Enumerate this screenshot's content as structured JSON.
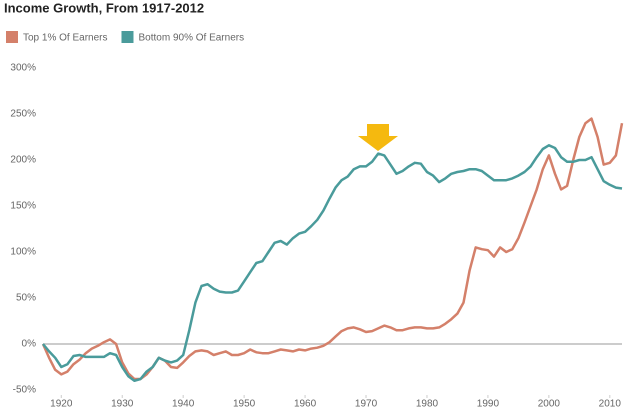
{
  "chart_data": {
    "type": "line",
    "title": "Income Growth, From 1917-2012",
    "x": [
      1917,
      1918,
      1919,
      1920,
      1921,
      1922,
      1923,
      1924,
      1925,
      1926,
      1927,
      1928,
      1929,
      1930,
      1931,
      1932,
      1933,
      1934,
      1935,
      1936,
      1937,
      1938,
      1939,
      1940,
      1941,
      1942,
      1943,
      1944,
      1945,
      1946,
      1947,
      1948,
      1949,
      1950,
      1951,
      1952,
      1953,
      1954,
      1955,
      1956,
      1957,
      1958,
      1959,
      1960,
      1961,
      1962,
      1963,
      1964,
      1965,
      1966,
      1967,
      1968,
      1969,
      1970,
      1971,
      1972,
      1973,
      1974,
      1975,
      1976,
      1977,
      1978,
      1979,
      1980,
      1981,
      1982,
      1983,
      1984,
      1985,
      1986,
      1987,
      1988,
      1989,
      1990,
      1991,
      1992,
      1993,
      1994,
      1995,
      1996,
      1997,
      1998,
      1999,
      2000,
      2001,
      2002,
      2003,
      2004,
      2005,
      2006,
      2007,
      2008,
      2009,
      2010,
      2011,
      2012
    ],
    "series": [
      {
        "name": "Top 1% Of Earners",
        "color": "#d4806a",
        "values": [
          0,
          -15,
          -28,
          -33,
          -30,
          -22,
          -17,
          -10,
          -5,
          -2,
          2,
          5,
          0,
          -20,
          -32,
          -38,
          -38,
          -33,
          -25,
          -15,
          -18,
          -25,
          -26,
          -20,
          -13,
          -8,
          -7,
          -8,
          -12,
          -10,
          -8,
          -12,
          -12,
          -10,
          -6,
          -9,
          -10,
          -10,
          -8,
          -6,
          -7,
          -8,
          -6,
          -7,
          -5,
          -4,
          -2,
          2,
          8,
          14,
          17,
          18,
          16,
          13,
          14,
          17,
          20,
          18,
          15,
          15,
          17,
          18,
          18,
          17,
          17,
          18,
          22,
          27,
          33,
          45,
          80,
          105,
          103,
          102,
          95,
          105,
          100,
          103,
          115,
          132,
          150,
          168,
          190,
          205,
          185,
          168,
          172,
          200,
          225,
          240,
          245,
          225,
          195,
          197,
          205,
          240
        ]
      },
      {
        "name": "Bottom 90% Of Earners",
        "color": "#4a9b9b",
        "values": [
          0,
          -8,
          -15,
          -25,
          -22,
          -13,
          -12,
          -14,
          -14,
          -14,
          -14,
          -10,
          -12,
          -25,
          -35,
          -40,
          -38,
          -30,
          -25,
          -15,
          -18,
          -20,
          -18,
          -12,
          15,
          45,
          63,
          65,
          60,
          57,
          56,
          56,
          58,
          68,
          78,
          88,
          90,
          100,
          110,
          112,
          108,
          115,
          120,
          122,
          128,
          135,
          145,
          158,
          170,
          178,
          182,
          190,
          193,
          193,
          198,
          207,
          205,
          195,
          185,
          188,
          193,
          197,
          196,
          187,
          183,
          176,
          180,
          185,
          187,
          188,
          190,
          190,
          188,
          183,
          178,
          178,
          178,
          180,
          183,
          187,
          193,
          203,
          212,
          216,
          213,
          203,
          198,
          198,
          200,
          200,
          203,
          190,
          177,
          173,
          170,
          169
        ]
      }
    ],
    "xlim": [
      1917,
      2012
    ],
    "xticks": [
      1920,
      1930,
      1940,
      1950,
      1960,
      1970,
      1980,
      1990,
      2000,
      2010
    ],
    "ylim": [
      -55,
      300
    ],
    "yticks": [
      {
        "value": -50,
        "label": "-50%"
      },
      {
        "value": 0,
        "label": "0%"
      },
      {
        "value": 50,
        "label": "50%"
      },
      {
        "value": 100,
        "label": "100%"
      },
      {
        "value": 150,
        "label": "150%"
      },
      {
        "value": 200,
        "label": "200%"
      },
      {
        "value": 250,
        "label": "250%"
      },
      {
        "value": 300,
        "label": "300%"
      }
    ],
    "grid": false
  }
}
